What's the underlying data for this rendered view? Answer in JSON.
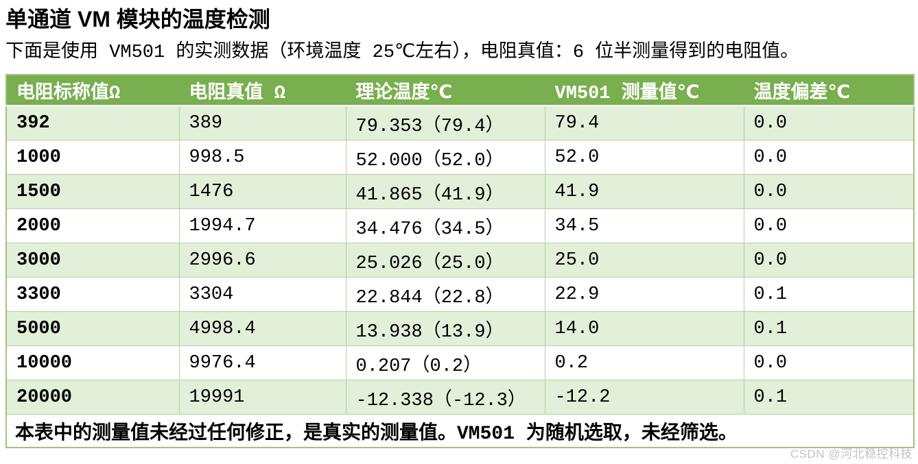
{
  "page": {
    "title": "单通道 VM 模块的温度检测",
    "subtitle": "下面是使用 VM501 的实测数据（环境温度 25℃左右），电阻真值：6 位半测量得到的电阻值。",
    "watermark": "CSDN @河北稳控科技"
  },
  "table": {
    "headers": [
      "电阻标称值Ω",
      "电阻真值 Ω",
      "理论温度℃",
      "VM501 测量值℃",
      "温度偏差℃"
    ],
    "rows": [
      [
        "392",
        "389",
        "79.353（79.4）",
        "79.4",
        "0.0"
      ],
      [
        "1000",
        "998.5",
        "52.000（52.0）",
        "52.0",
        "0.0"
      ],
      [
        "1500",
        "1476",
        "41.865（41.9）",
        "41.9",
        "0.0"
      ],
      [
        "2000",
        "1994.7",
        "34.476（34.5）",
        "34.5",
        "0.0"
      ],
      [
        "3000",
        "2996.6",
        "25.026（25.0）",
        "25.0",
        "0.0"
      ],
      [
        "3300",
        "3304",
        "22.844（22.8）",
        "22.9",
        "0.1"
      ],
      [
        "5000",
        "4998.4",
        "13.938（13.9）",
        "14.0",
        "0.1"
      ],
      [
        "10000",
        "9976.4",
        "0.207（0.2）",
        "0.2",
        "0.0"
      ],
      [
        "20000",
        "19991",
        "-12.338（-12.3）",
        "-12.2",
        "0.1"
      ]
    ],
    "footer_note": "本表中的测量值未经过任何修正，是真实的测量值。VM501 为随机选取，未经筛选。"
  },
  "colors": {
    "header_bg": "#79af4f",
    "row_alt_bg": "#e2efd9",
    "row_bg": "#ffffff",
    "outer_border": "#9cc47e",
    "inner_border": "#afd49a",
    "header_text": "#ffffff",
    "body_text": "#000000",
    "watermark_text": "#c2c2c2"
  }
}
